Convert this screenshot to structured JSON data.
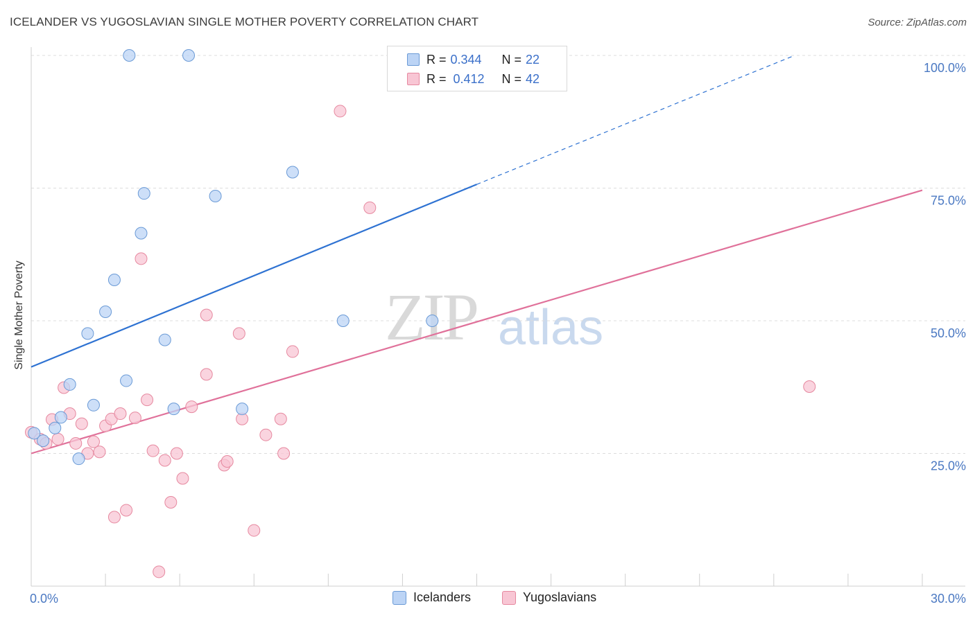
{
  "title": "ICELANDER VS YUGOSLAVIAN SINGLE MOTHER POVERTY CORRELATION CHART",
  "source": "Source: ZipAtlas.com",
  "watermark": {
    "zip": "ZIP",
    "atlas": "atlas"
  },
  "legend": {
    "rows": [
      {
        "r_label": "R =",
        "r_value": "0.344",
        "n_label": "N =",
        "n_value": "22",
        "color": "#a9c8f0"
      },
      {
        "r_label": "R =",
        "r_value": "0.412",
        "n_label": "N =",
        "n_value": "42",
        "color": "#f5b8ca"
      }
    ]
  },
  "bottom_legend": [
    {
      "label": "Icelanders",
      "color": "#a9c8f0"
    },
    {
      "label": "Yugoslavians",
      "color": "#f5b8ca"
    }
  ],
  "colors": {
    "blue_fill": "#bcd4f5",
    "blue_stroke": "#6a9ad6",
    "blue_line": "#2e72d2",
    "pink_fill": "#f8c6d4",
    "pink_stroke": "#e6889f",
    "pink_line": "#e0719a"
  },
  "chart_data": {
    "type": "scatter",
    "title": "ICELANDER VS YUGOSLAVIAN SINGLE MOTHER POVERTY CORRELATION CHART",
    "xlabel": "",
    "ylabel": "Single Mother Poverty",
    "xlim": [
      0,
      30
    ],
    "ylim": [
      0,
      100
    ],
    "x_tick_labels": [
      "0.0%",
      "30.0%"
    ],
    "y_ticks": [
      25,
      50,
      75,
      100
    ],
    "y_tick_labels": [
      "25.0%",
      "50.0%",
      "75.0%",
      "100.0%"
    ],
    "grid": true,
    "legend_position": "top-center",
    "series": [
      {
        "name": "Icelanders",
        "R": 0.344,
        "N": 22,
        "points": [
          [
            0.1,
            28.8
          ],
          [
            0.4,
            27.4
          ],
          [
            0.8,
            29.8
          ],
          [
            1.0,
            31.8
          ],
          [
            1.3,
            38.0
          ],
          [
            1.6,
            24.0
          ],
          [
            1.9,
            47.6
          ],
          [
            2.1,
            34.1
          ],
          [
            2.5,
            51.7
          ],
          [
            2.8,
            57.7
          ],
          [
            3.2,
            38.7
          ],
          [
            3.3,
            100.0
          ],
          [
            3.8,
            74.0
          ],
          [
            3.7,
            66.5
          ],
          [
            4.5,
            46.4
          ],
          [
            4.8,
            33.4
          ],
          [
            5.3,
            100.0
          ],
          [
            6.2,
            73.5
          ],
          [
            7.1,
            33.4
          ],
          [
            8.8,
            78.0
          ],
          [
            10.5,
            50.0
          ],
          [
            13.5,
            50.0
          ]
        ],
        "trend": {
          "x0": 0.0,
          "y0": 41.3,
          "x1": 15.0,
          "y1": 75.7,
          "dashed_to_x": 25.7,
          "dashed_to_y": 100.0
        }
      },
      {
        "name": "Yugoslavians",
        "R": 0.412,
        "N": 42,
        "points": [
          [
            0.0,
            29.0
          ],
          [
            0.3,
            27.7
          ],
          [
            0.5,
            26.9
          ],
          [
            0.7,
            31.4
          ],
          [
            0.9,
            27.7
          ],
          [
            1.1,
            37.4
          ],
          [
            1.3,
            32.5
          ],
          [
            1.5,
            26.9
          ],
          [
            1.7,
            30.6
          ],
          [
            1.9,
            25.0
          ],
          [
            2.1,
            27.2
          ],
          [
            2.3,
            25.3
          ],
          [
            2.5,
            30.2
          ],
          [
            2.7,
            31.5
          ],
          [
            2.8,
            13.0
          ],
          [
            3.0,
            32.5
          ],
          [
            3.2,
            14.3
          ],
          [
            3.5,
            31.7
          ],
          [
            3.7,
            61.7
          ],
          [
            3.9,
            35.1
          ],
          [
            4.1,
            25.5
          ],
          [
            4.3,
            2.7
          ],
          [
            4.5,
            23.7
          ],
          [
            4.7,
            15.8
          ],
          [
            4.9,
            25.0
          ],
          [
            5.1,
            20.3
          ],
          [
            5.4,
            33.8
          ],
          [
            5.9,
            51.1
          ],
          [
            5.9,
            39.9
          ],
          [
            6.5,
            22.8
          ],
          [
            6.6,
            23.5
          ],
          [
            7.0,
            47.6
          ],
          [
            7.1,
            31.5
          ],
          [
            7.5,
            10.5
          ],
          [
            7.9,
            28.5
          ],
          [
            8.4,
            31.5
          ],
          [
            8.5,
            25.0
          ],
          [
            8.8,
            44.2
          ],
          [
            10.4,
            89.5
          ],
          [
            11.4,
            71.3
          ],
          [
            13.4,
            100.0
          ],
          [
            26.2,
            37.6
          ]
        ],
        "trend": {
          "x0": 0.0,
          "y0": 25.0,
          "x1": 30.0,
          "y1": 74.6
        }
      }
    ]
  }
}
